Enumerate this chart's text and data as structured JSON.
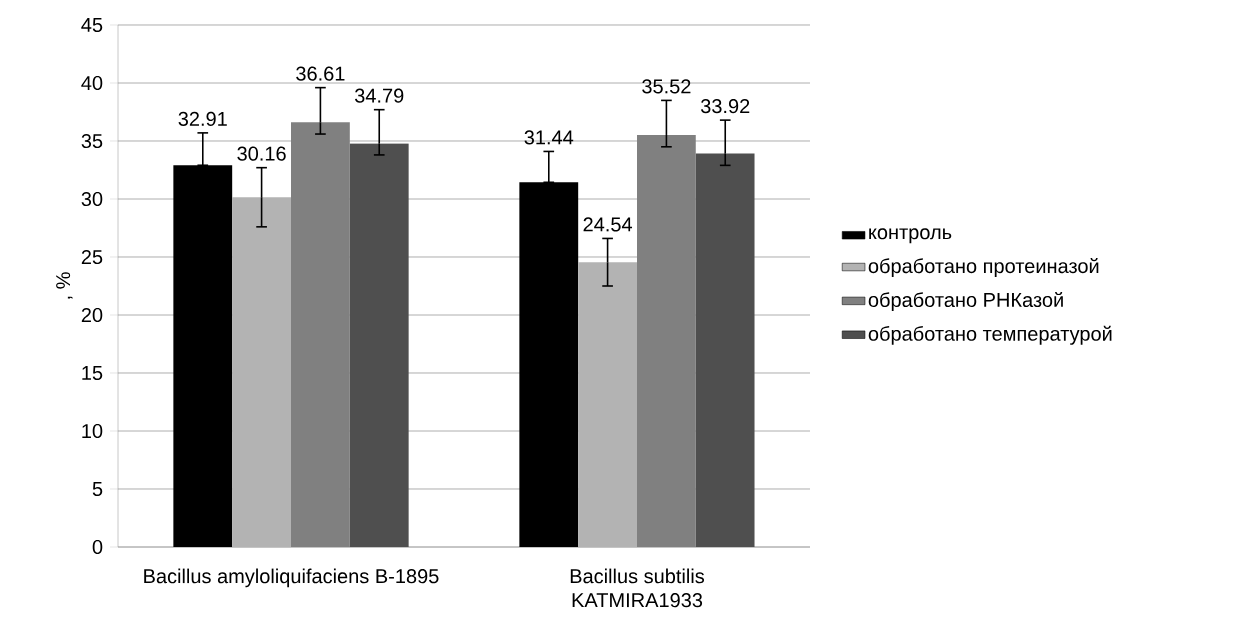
{
  "chart_data": {
    "type": "bar",
    "ylabel": ", %",
    "categories": [
      "Bacillus amyloliquifaciens B-1895",
      "Bacillus subtilis KATMIRA1933"
    ],
    "series": [
      {
        "name": "контроль",
        "color": "#000000",
        "values": [
          32.91,
          31.44
        ],
        "errors": [
          [
            32.91,
            35.7
          ],
          [
            31.44,
            34.1
          ]
        ]
      },
      {
        "name": "обработано протеиназой",
        "color": "#b3b3b3",
        "values": [
          30.16,
          24.54
        ],
        "errors": [
          [
            27.6,
            32.7
          ],
          [
            22.5,
            26.6
          ]
        ]
      },
      {
        "name": "обработано РНКазой",
        "color": "#808080",
        "values": [
          36.61,
          35.52
        ],
        "errors": [
          [
            35.6,
            39.6
          ],
          [
            34.5,
            38.5
          ]
        ]
      },
      {
        "name": "обработано температурой",
        "color": "#4f4f4f",
        "values": [
          34.79,
          33.92
        ],
        "errors": [
          [
            33.8,
            37.7
          ],
          [
            32.9,
            36.8
          ]
        ]
      }
    ],
    "ylim": [
      0,
      45
    ],
    "yticks": [
      0,
      5,
      10,
      15,
      20,
      25,
      30,
      35,
      40,
      45
    ],
    "grid": "y",
    "legend": "right",
    "data_labels": true
  }
}
